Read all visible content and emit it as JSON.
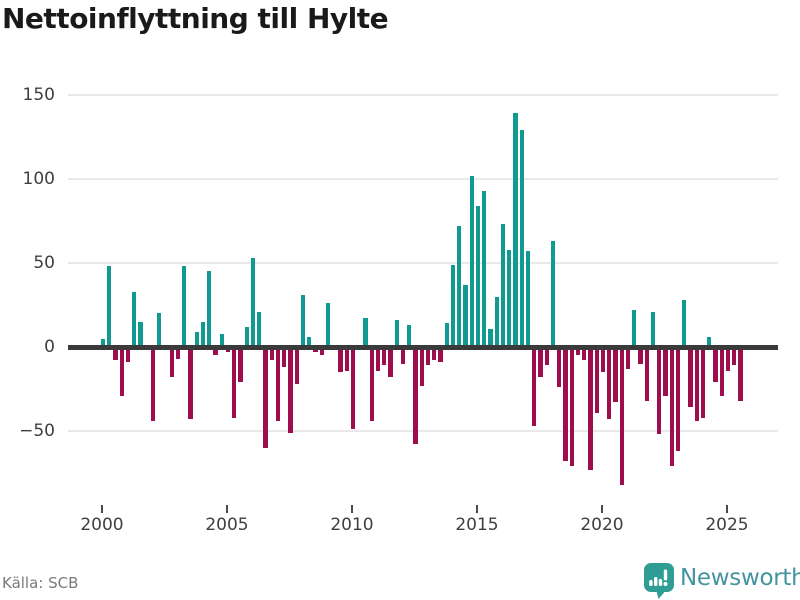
{
  "title": "Nettoinflyttning till Hylte",
  "footer": {
    "source": "Källa: SCB",
    "brand": "Newsworthy"
  },
  "colors": {
    "positive_bar": "#119a91",
    "negative_bar": "#9e0d4d",
    "zero_line": "#3a3a3a",
    "gridline": "#e9e9e9",
    "title_text": "#1a1a1a",
    "axis_label": "#3f3f3f",
    "source_text": "#7a7a7a",
    "brand_icon": "#2f9d94",
    "brand_text": "#4493a0"
  },
  "chart_data": {
    "type": "bar",
    "title": "Nettoinflyttning till Hylte",
    "xlabel": "",
    "ylabel": "",
    "frequency": "quarterly",
    "start_period": "2000 Q1",
    "end_period": "2025 Q3",
    "x_tick_labels": [
      "2000",
      "2005",
      "2010",
      "2015",
      "2020",
      "2025"
    ],
    "y_ticks": [
      150,
      100,
      50,
      0,
      -50
    ],
    "y_tick_labels": [
      "150",
      "100",
      "50",
      "0",
      "−50"
    ],
    "ylim": [
      -90,
      160
    ],
    "grid": true,
    "legend": false,
    "values_by_year": {
      "2000": [
        5,
        48,
        -8,
        -29
      ],
      "2001": [
        -9,
        33,
        15,
        0
      ],
      "2002": [
        -44,
        20,
        0,
        -18
      ],
      "2003": [
        -7,
        48,
        -43,
        9
      ],
      "2004": [
        15,
        45,
        -5,
        8
      ],
      "2005": [
        -3,
        -42,
        -21,
        12
      ],
      "2006": [
        53,
        21,
        -60,
        -8
      ],
      "2007": [
        -44,
        -12,
        -51,
        -22
      ],
      "2008": [
        31,
        6,
        -3,
        -5
      ],
      "2009": [
        26,
        0,
        -15,
        -14
      ],
      "2010": [
        -49,
        0,
        17,
        -44
      ],
      "2011": [
        -14,
        -11,
        -18,
        16
      ],
      "2012": [
        -10,
        13,
        -58,
        -23
      ],
      "2013": [
        -11,
        -8,
        -9,
        14
      ],
      "2014": [
        49,
        72,
        37,
        102
      ],
      "2015": [
        84,
        93,
        11,
        30
      ],
      "2016": [
        73,
        58,
        139,
        129
      ],
      "2017": [
        57,
        -47,
        -18,
        -11
      ],
      "2018": [
        63,
        -24,
        -68,
        -71
      ],
      "2019": [
        -5,
        -8,
        -73,
        -39
      ],
      "2020": [
        -15,
        -43,
        -33,
        -82
      ],
      "2021": [
        -13,
        22,
        -10,
        -32
      ],
      "2022": [
        21,
        -52,
        -29,
        -71
      ],
      "2023": [
        -62,
        28,
        -36,
        -44
      ],
      "2024": [
        -42,
        6,
        -21,
        -29
      ],
      "2025": [
        -14,
        -11,
        -32
      ]
    }
  }
}
